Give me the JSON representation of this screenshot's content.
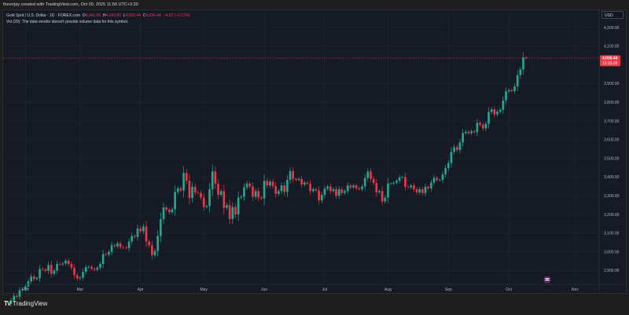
{
  "header": {
    "credit": "thevrrjay created with TradingView.com, Oct 09, 2025 11:56 UTC+3:30"
  },
  "legend": {
    "symbol": "Gold Spot / U.S. Dollar · 1D · FOREX.com",
    "open_label": "O",
    "open": "4,041.06",
    "high_label": "H",
    "high": "4,043.80",
    "low_label": "L",
    "low": "4,001.44",
    "close_label": "C",
    "close": "4,036.44",
    "change": "−4.62 (−0.11%)",
    "volume_note": "Vol (20): The data vendor doesn't provide volume data for this symbol."
  },
  "currency": "USD",
  "last_price": {
    "price": "4,036.44",
    "countdown": "12:33:20"
  },
  "footer": {
    "brand": "TradingView"
  },
  "colors": {
    "up": "#22ab94",
    "down": "#f23645",
    "background": "#161a25",
    "grid": "#222633",
    "text": "#b2b5be"
  },
  "event_icon": "flag-event-icon",
  "chart_data": {
    "type": "candlestick",
    "ylim": [
      2840,
      4270
    ],
    "y_ticks": [
      "4,200.00",
      "4,100.00",
      "3,900.00",
      "3,800.00",
      "3,700.00",
      "3,600.00",
      "3,500.00",
      "3,400.00",
      "3,300.00",
      "3,200.00",
      "3,100.00",
      "3,000.00",
      "2,900.00"
    ],
    "y_tick_values": [
      4200,
      4100,
      3900,
      3800,
      3700,
      3600,
      3500,
      3400,
      3300,
      3200,
      3100,
      3000,
      2900
    ],
    "x_ticks": [
      "Feb",
      "Mar",
      "Apr",
      "May",
      "Jun",
      "Jul",
      "Aug",
      "Sep",
      "Oct",
      "Nov"
    ],
    "x_tick_day_index": [
      5,
      24,
      45,
      67,
      88,
      109,
      131,
      152,
      173,
      196
    ],
    "last_price": 4036.44,
    "grid": true,
    "closes": [
      2740,
      2765,
      2760,
      2795,
      2800,
      2815,
      2842,
      2868,
      2855,
      2860,
      2908,
      2905,
      2898,
      2930,
      2883,
      2900,
      2935,
      2933,
      2938,
      2952,
      2935,
      2915,
      2875,
      2858,
      2862,
      2893,
      2918,
      2920,
      2910,
      2905,
      2915,
      2935,
      2988,
      2985,
      3000,
      3035,
      3030,
      3045,
      3025,
      3022,
      3020,
      3055,
      3085,
      3080,
      3125,
      3110,
      3135,
      3055,
      3035,
      2982,
      3005,
      3085,
      3175,
      3238,
      3225,
      3212,
      3228,
      3320,
      3340,
      3328,
      3422,
      3380,
      3288,
      3348,
      3318,
      3315,
      3290,
      3240,
      3245,
      3335,
      3430,
      3365,
      3305,
      3325,
      3235,
      3250,
      3175,
      3240,
      3200,
      3290,
      3295,
      3345,
      3365,
      3350,
      3295,
      3325,
      3290,
      3285,
      3380,
      3355,
      3375,
      3352,
      3310,
      3325,
      3355,
      3320,
      3385,
      3432,
      3390,
      3385,
      3390,
      3360,
      3370,
      3365,
      3325,
      3335,
      3328,
      3275,
      3305,
      3338,
      3350,
      3325,
      3335,
      3300,
      3335,
      3315,
      3325,
      3355,
      3345,
      3355,
      3340,
      3335,
      3350,
      3395,
      3430,
      3390,
      3368,
      3318,
      3325,
      3270,
      3290,
      3365,
      3365,
      3370,
      3380,
      3398,
      3400,
      3348,
      3345,
      3355,
      3335,
      3318,
      3335,
      3315,
      3348,
      3340,
      3370,
      3395,
      3385,
      3385,
      3415,
      3448,
      3475,
      3535,
      3560,
      3545,
      3585,
      3635,
      3642,
      3635,
      3645,
      3640,
      3690,
      3680,
      3660,
      3685,
      3748,
      3763,
      3735,
      3750,
      3760,
      3810,
      3858,
      3865,
      3860,
      3885,
      3945,
      3975,
      4040,
      4036.44
    ]
  }
}
